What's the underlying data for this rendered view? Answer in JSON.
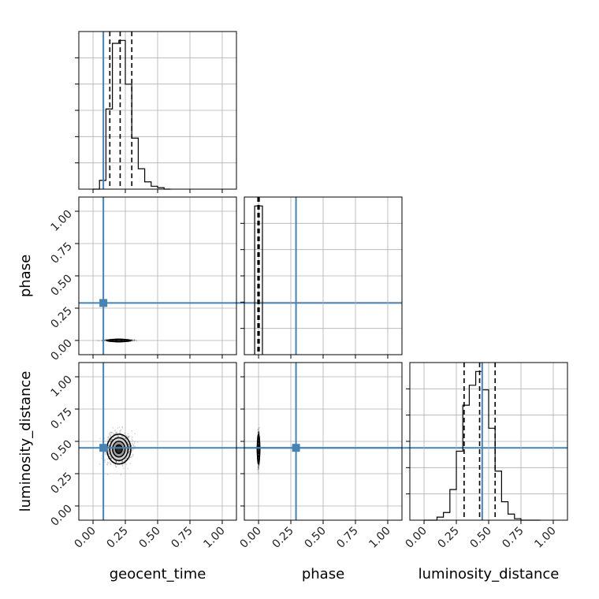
{
  "chart_data": {
    "type": "corner",
    "parameters": [
      "geocent_time",
      "phase",
      "luminosity_distance"
    ],
    "range": [
      0,
      1
    ],
    "ticks": [
      0.0,
      0.25,
      0.5,
      0.75,
      1.0
    ],
    "tick_labels": [
      "0.00",
      "0.25",
      "0.50",
      "0.75",
      "1.00"
    ],
    "grid": true,
    "truths": {
      "geocent_time": 0.08,
      "phase": 0.29,
      "luminosity_distance": 0.45
    },
    "truth_color": "#4682b4",
    "marginals": {
      "geocent_time": {
        "bin_edges": [
          0.0,
          0.05,
          0.1,
          0.15,
          0.2,
          0.25,
          0.3,
          0.35,
          0.4,
          0.45,
          0.5,
          0.55,
          0.6
        ],
        "counts": [
          0.0,
          0.06,
          0.55,
          1.0,
          1.02,
          0.72,
          0.35,
          0.14,
          0.05,
          0.02,
          0.01,
          0.0
        ],
        "quantiles": [
          0.13,
          0.21,
          0.3
        ]
      },
      "phase": {
        "bin_edges": [
          -0.03,
          0.0,
          0.03
        ],
        "counts": [
          1.0,
          1.0
        ],
        "quantiles": [
          -0.005,
          0.0,
          0.005
        ]
      },
      "luminosity_distance": {
        "bin_edges": [
          0.0,
          0.05,
          0.1,
          0.15,
          0.2,
          0.25,
          0.3,
          0.35,
          0.4,
          0.45,
          0.5,
          0.55,
          0.6,
          0.65,
          0.7,
          0.75,
          0.8,
          0.85,
          0.9
        ],
        "counts": [
          0.0,
          0.0,
          0.02,
          0.05,
          0.2,
          0.45,
          0.75,
          0.88,
          0.97,
          0.85,
          0.6,
          0.32,
          0.12,
          0.04,
          0.01,
          0.0,
          0.0,
          0.0
        ],
        "quantiles": [
          0.31,
          0.43,
          0.55
        ]
      }
    },
    "joint": [
      {
        "x": "geocent_time",
        "y": "phase",
        "center": [
          0.2,
          0.0
        ],
        "spread": [
          0.08,
          0.006
        ]
      },
      {
        "x": "geocent_time",
        "y": "luminosity_distance",
        "center": [
          0.2,
          0.44
        ],
        "spread": [
          0.08,
          0.1
        ]
      },
      {
        "x": "phase",
        "y": "luminosity_distance",
        "center": [
          0.0,
          0.44
        ],
        "spread": [
          0.006,
          0.1
        ]
      }
    ]
  }
}
